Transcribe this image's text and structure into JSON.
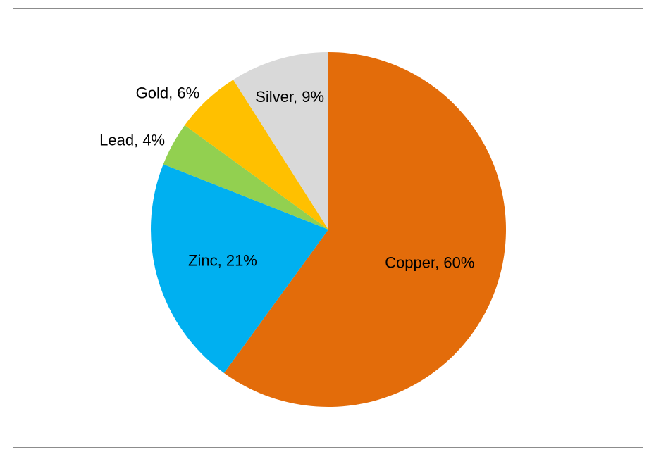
{
  "chart_data": {
    "type": "pie",
    "title": "",
    "start": "12 o'clock",
    "direction": "clockwise",
    "slices": [
      {
        "category": "Copper",
        "value": 60,
        "label": "Copper, 60%",
        "color": "#E36C0A"
      },
      {
        "category": "Zinc",
        "value": 21,
        "label": "Zinc, 21%",
        "color": "#00B0F0"
      },
      {
        "category": "Lead",
        "value": 4,
        "label": "Lead, 4%",
        "color": "#92D050"
      },
      {
        "category": "Gold",
        "value": 6,
        "label": "Gold, 6%",
        "color": "#FFC000"
      },
      {
        "category": "Silver",
        "value": 9,
        "label": "Silver, 9%",
        "color": "#D9D9D9"
      }
    ],
    "legend": "none"
  }
}
